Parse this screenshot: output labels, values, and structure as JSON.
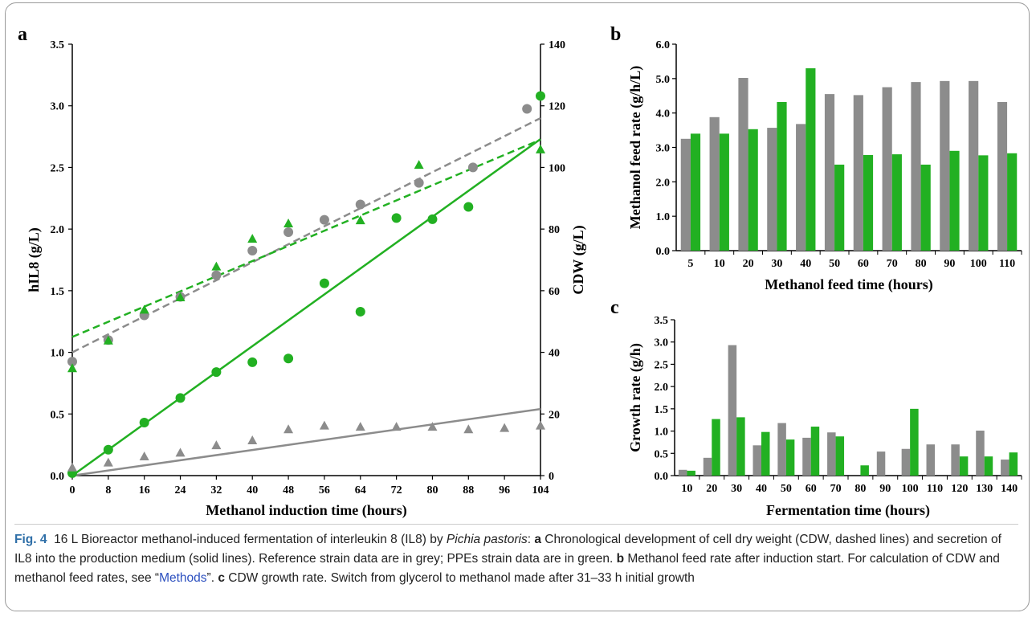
{
  "colors": {
    "reference": "#8c8c8c",
    "ppes": "#22b022",
    "axis": "#000000"
  },
  "chart_data": [
    {
      "panel": "a",
      "type": "scatter",
      "xlabel": "Methanol induction time (hours)",
      "ylabel": "hIL8 (g/L)",
      "y2label": "CDW (g/L)",
      "x_ticks": [
        "0",
        "8",
        "16",
        "24",
        "32",
        "40",
        "48",
        "56",
        "64",
        "72",
        "80",
        "88",
        "96",
        "104"
      ],
      "xlim": [
        0,
        104
      ],
      "ylim": [
        0,
        3.5
      ],
      "y_ticks": [
        "0.0",
        "0.5",
        "1.0",
        "1.5",
        "2.0",
        "2.5",
        "3.0",
        "3.5"
      ],
      "y2lim": [
        0,
        140
      ],
      "y2_ticks": [
        "0",
        "20",
        "40",
        "60",
        "80",
        "100",
        "120",
        "140"
      ],
      "series": [
        {
          "color_key": "reference",
          "marker": "circle",
          "axis": "right",
          "x": [
            0,
            8,
            16,
            24,
            32,
            40,
            48,
            56,
            64,
            77,
            89,
            101
          ],
          "y": [
            37,
            44,
            52,
            58,
            65,
            73,
            79,
            83,
            88,
            95,
            100,
            119
          ]
        },
        {
          "color_key": "ppes",
          "marker": "triangle",
          "axis": "right",
          "x": [
            0,
            8,
            16,
            24,
            32,
            40,
            48,
            64,
            77,
            104
          ],
          "y": [
            35,
            44,
            54,
            58,
            68,
            77,
            82,
            83,
            101,
            106
          ]
        },
        {
          "color_key": "ppes",
          "marker": "circle",
          "axis": "left",
          "x": [
            0,
            8,
            16,
            24,
            32,
            40,
            48,
            56,
            64,
            72,
            80,
            88,
            104
          ],
          "y": [
            0.02,
            0.21,
            0.43,
            0.63,
            0.84,
            0.92,
            0.95,
            1.56,
            1.33,
            2.09,
            2.08,
            2.18,
            3.08
          ]
        },
        {
          "color_key": "reference",
          "marker": "triangle",
          "axis": "left",
          "x": [
            0,
            8,
            16,
            24,
            32,
            40,
            48,
            56,
            64,
            72,
            80,
            88,
            96,
            104
          ],
          "y": [
            0.07,
            0.11,
            0.16,
            0.19,
            0.25,
            0.29,
            0.38,
            0.41,
            0.4,
            0.4,
            0.4,
            0.38,
            0.39,
            0.41
          ]
        }
      ],
      "trendlines": [
        {
          "color_key": "reference",
          "style": "dashed",
          "axis": "right",
          "x": [
            0,
            104
          ],
          "y": [
            40,
            116
          ]
        },
        {
          "color_key": "ppes",
          "style": "dashed",
          "axis": "right",
          "x": [
            0,
            104
          ],
          "y": [
            45,
            109
          ]
        },
        {
          "color_key": "ppes",
          "style": "solid",
          "axis": "left",
          "x": [
            0,
            104
          ],
          "y": [
            0,
            2.73
          ]
        },
        {
          "color_key": "reference",
          "style": "solid",
          "axis": "left",
          "x": [
            0,
            104
          ],
          "y": [
            0,
            0.54
          ]
        }
      ]
    },
    {
      "panel": "b",
      "type": "bar",
      "xlabel": "Methanol feed time (hours)",
      "ylabel": "Methanol feed rate (g/h/L)",
      "categories": [
        "5",
        "10",
        "20",
        "30",
        "40",
        "50",
        "60",
        "70",
        "80",
        "90",
        "100",
        "110"
      ],
      "ylim": [
        0,
        6
      ],
      "y_ticks": [
        "0.0",
        "1.0",
        "2.0",
        "3.0",
        "4.0",
        "5.0",
        "6.0"
      ],
      "series": [
        {
          "color_key": "reference",
          "values": [
            3.25,
            3.88,
            5.02,
            3.57,
            3.68,
            4.55,
            4.52,
            4.75,
            4.9,
            4.93,
            4.93,
            4.32
          ]
        },
        {
          "color_key": "ppes",
          "values": [
            3.4,
            3.4,
            3.53,
            4.32,
            5.3,
            2.5,
            2.78,
            2.8,
            2.5,
            2.9,
            2.77,
            2.83
          ]
        }
      ]
    },
    {
      "panel": "c",
      "type": "bar",
      "xlabel": "Fermentation time (hours)",
      "ylabel": "Growth rate (g/h)",
      "categories": [
        "10",
        "20",
        "30",
        "40",
        "50",
        "60",
        "70",
        "80",
        "90",
        "100",
        "110",
        "120",
        "130",
        "140"
      ],
      "ylim": [
        0,
        3.5
      ],
      "y_ticks": [
        "0.0",
        "0.5",
        "1.0",
        "1.5",
        "2.0",
        "2.5",
        "3.0",
        "3.5"
      ],
      "series": [
        {
          "color_key": "reference",
          "values": [
            0.13,
            0.4,
            2.93,
            0.68,
            1.18,
            0.85,
            0.97,
            0,
            0.54,
            0.6,
            0.7,
            0.7,
            1.01,
            0.36
          ]
        },
        {
          "color_key": "ppes",
          "values": [
            0.11,
            1.27,
            1.31,
            0.98,
            0.81,
            1.1,
            0.88,
            0.23,
            0,
            1.5,
            0,
            0.43,
            0.43,
            0.52
          ]
        }
      ]
    }
  ],
  "caption": {
    "fig_label": "Fig. 4",
    "t1": "16 L Bioreactor methanol-induced fermentation of interleukin 8 (IL8) by ",
    "organism": "Pichia pastoris",
    "t2": ": ",
    "ka": "a",
    "t3": " Chronological development of cell dry weight (CDW, dashed lines) and secretion of IL8 into the production medium (solid lines). Reference strain data are in grey; PPEs strain data are in green. ",
    "kb": "b",
    "t4": " Methanol feed rate after induction start. For calculation of CDW and methanol feed rates, see “",
    "link": "Methods",
    "t5": "”. ",
    "kc": "c",
    "t6": " CDW growth rate. Switch from glycerol to methanol made after 31–33 h initial growth"
  }
}
